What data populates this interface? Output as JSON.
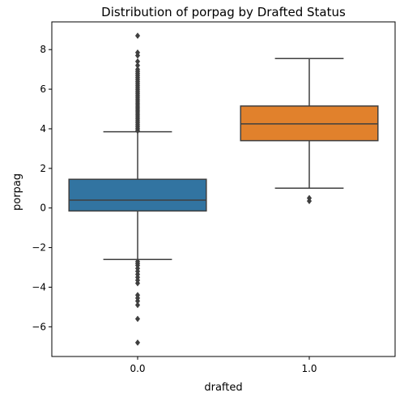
{
  "chart_data": {
    "type": "box",
    "title": "Distribution of porpag by Drafted Status",
    "xlabel": "drafted",
    "ylabel": "porpag",
    "categories": [
      "0.0",
      "1.0"
    ],
    "ylim": [
      -7.5,
      9.4
    ],
    "yticks": [
      -6,
      -4,
      -2,
      0,
      2,
      4,
      6,
      8
    ],
    "ytick_labels": [
      "−6",
      "−4",
      "−2",
      "0",
      "2",
      "4",
      "6",
      "8"
    ],
    "grid": false,
    "boxes": [
      {
        "category": "0.0",
        "color": "#3274a1",
        "q1": -0.15,
        "median": 0.4,
        "q3": 1.45,
        "whisker_low": -2.6,
        "whisker_high": 3.85,
        "outliers": [
          -6.8,
          -5.6,
          -4.9,
          -4.7,
          -4.55,
          -4.4,
          -3.8,
          -3.65,
          -3.5,
          -3.35,
          -3.2,
          -3.05,
          -2.9,
          -2.8,
          -2.7,
          3.9,
          4.0,
          4.1,
          4.2,
          4.3,
          4.4,
          4.5,
          4.6,
          4.7,
          4.8,
          4.9,
          5.0,
          5.1,
          5.2,
          5.3,
          5.4,
          5.5,
          5.6,
          5.7,
          5.8,
          5.9,
          6.0,
          6.1,
          6.2,
          6.3,
          6.4,
          6.5,
          6.6,
          6.7,
          6.8,
          6.9,
          7.0,
          7.2,
          7.4,
          7.7,
          7.85,
          8.7
        ]
      },
      {
        "category": "1.0",
        "color": "#e1812c",
        "q1": 3.4,
        "median": 4.25,
        "q3": 5.15,
        "whisker_low": 1.0,
        "whisker_high": 7.55,
        "outliers": [
          0.35,
          0.5
        ]
      }
    ]
  }
}
